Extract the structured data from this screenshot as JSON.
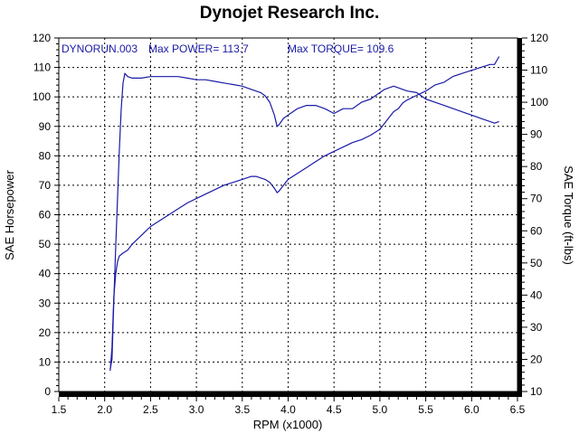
{
  "chart_data": {
    "type": "line",
    "title": "Dynojet Research Inc.",
    "xlabel": "RPM (x1000)",
    "ylabel_left": "SAE Horsepower",
    "ylabel_right": "SAE Torque (ft-lbs)",
    "xlim": [
      1.5,
      6.5
    ],
    "ylim_left": [
      0,
      120
    ],
    "ylim_right": [
      10,
      120
    ],
    "x_ticks": [
      "1.5",
      "2.0",
      "2.5",
      "3.0",
      "3.5",
      "4.0",
      "4.5",
      "5.0",
      "5.5",
      "6.0",
      "6.5"
    ],
    "y_left_ticks": [
      "0",
      "10",
      "20",
      "30",
      "40",
      "50",
      "60",
      "70",
      "80",
      "90",
      "100",
      "110",
      "120"
    ],
    "y_right_ticks": [
      "10",
      "20",
      "30",
      "40",
      "50",
      "60",
      "70",
      "80",
      "90",
      "100",
      "110",
      "120"
    ],
    "grid": true,
    "line_color": "#1a1aa6",
    "annotations": {
      "run": "DYNORUN.003",
      "max_power": "Max POWER= 113.7",
      "max_torque": "Max TORQUE= 109.6"
    },
    "series": [
      {
        "axis": "left",
        "x": [
          2.06,
          2.08,
          2.1,
          2.12,
          2.14,
          2.16,
          2.18,
          2.2,
          2.25,
          2.3,
          2.4,
          2.5,
          2.6,
          2.7,
          2.8,
          2.9,
          3.0,
          3.1,
          3.2,
          3.3,
          3.4,
          3.5,
          3.6,
          3.65,
          3.7,
          3.75,
          3.8,
          3.85,
          3.88,
          3.9,
          3.95,
          4.0,
          4.05,
          4.1,
          4.15,
          4.2,
          4.3,
          4.4,
          4.5,
          4.6,
          4.7,
          4.8,
          4.9,
          5.0,
          5.05,
          5.1,
          5.15,
          5.2,
          5.25,
          5.3,
          5.4,
          5.5,
          5.6,
          5.7,
          5.8,
          5.9,
          6.0,
          6.1,
          6.2,
          6.25,
          6.3
        ],
        "values": [
          7,
          15,
          32,
          40,
          44,
          46,
          46.5,
          47,
          48,
          50,
          53,
          56,
          58,
          60,
          62,
          64,
          65.5,
          67,
          68.5,
          70,
          71,
          72,
          73,
          73,
          72.5,
          72,
          71,
          69,
          67.5,
          68,
          70,
          72,
          73,
          74,
          75,
          76,
          78,
          80,
          81.5,
          83,
          84.5,
          85.5,
          87,
          89,
          91,
          93,
          95,
          96,
          98,
          99,
          100.5,
          102,
          104,
          105,
          107,
          108,
          109,
          110,
          111,
          111,
          113.7
        ]
      },
      {
        "axis": "right",
        "x": [
          2.06,
          2.08,
          2.1,
          2.12,
          2.14,
          2.16,
          2.18,
          2.2,
          2.22,
          2.25,
          2.3,
          2.4,
          2.5,
          2.6,
          2.7,
          2.8,
          2.9,
          3.0,
          3.1,
          3.2,
          3.3,
          3.4,
          3.5,
          3.6,
          3.7,
          3.75,
          3.8,
          3.85,
          3.88,
          3.9,
          3.95,
          4.0,
          4.1,
          4.2,
          4.3,
          4.4,
          4.5,
          4.6,
          4.7,
          4.8,
          4.9,
          5.0,
          5.05,
          5.1,
          5.15,
          5.2,
          5.25,
          5.3,
          5.4,
          5.5,
          5.6,
          5.7,
          5.8,
          5.9,
          6.0,
          6.1,
          6.2,
          6.25,
          6.3
        ],
        "values": [
          17,
          20,
          38,
          55,
          70,
          85,
          98,
          106,
          109,
          108,
          107.5,
          107.5,
          108,
          108,
          108,
          108,
          107.5,
          107,
          107,
          106.5,
          106,
          105.5,
          105,
          104,
          103,
          102,
          100,
          96,
          92.5,
          93,
          95,
          96,
          98,
          99,
          99,
          98,
          96.5,
          98,
          98,
          100,
          101,
          103,
          104,
          104.5,
          105,
          104.5,
          104,
          103.5,
          103,
          101,
          100,
          99,
          98,
          97,
          96,
          95,
          94,
          93.5,
          94
        ]
      }
    ]
  }
}
